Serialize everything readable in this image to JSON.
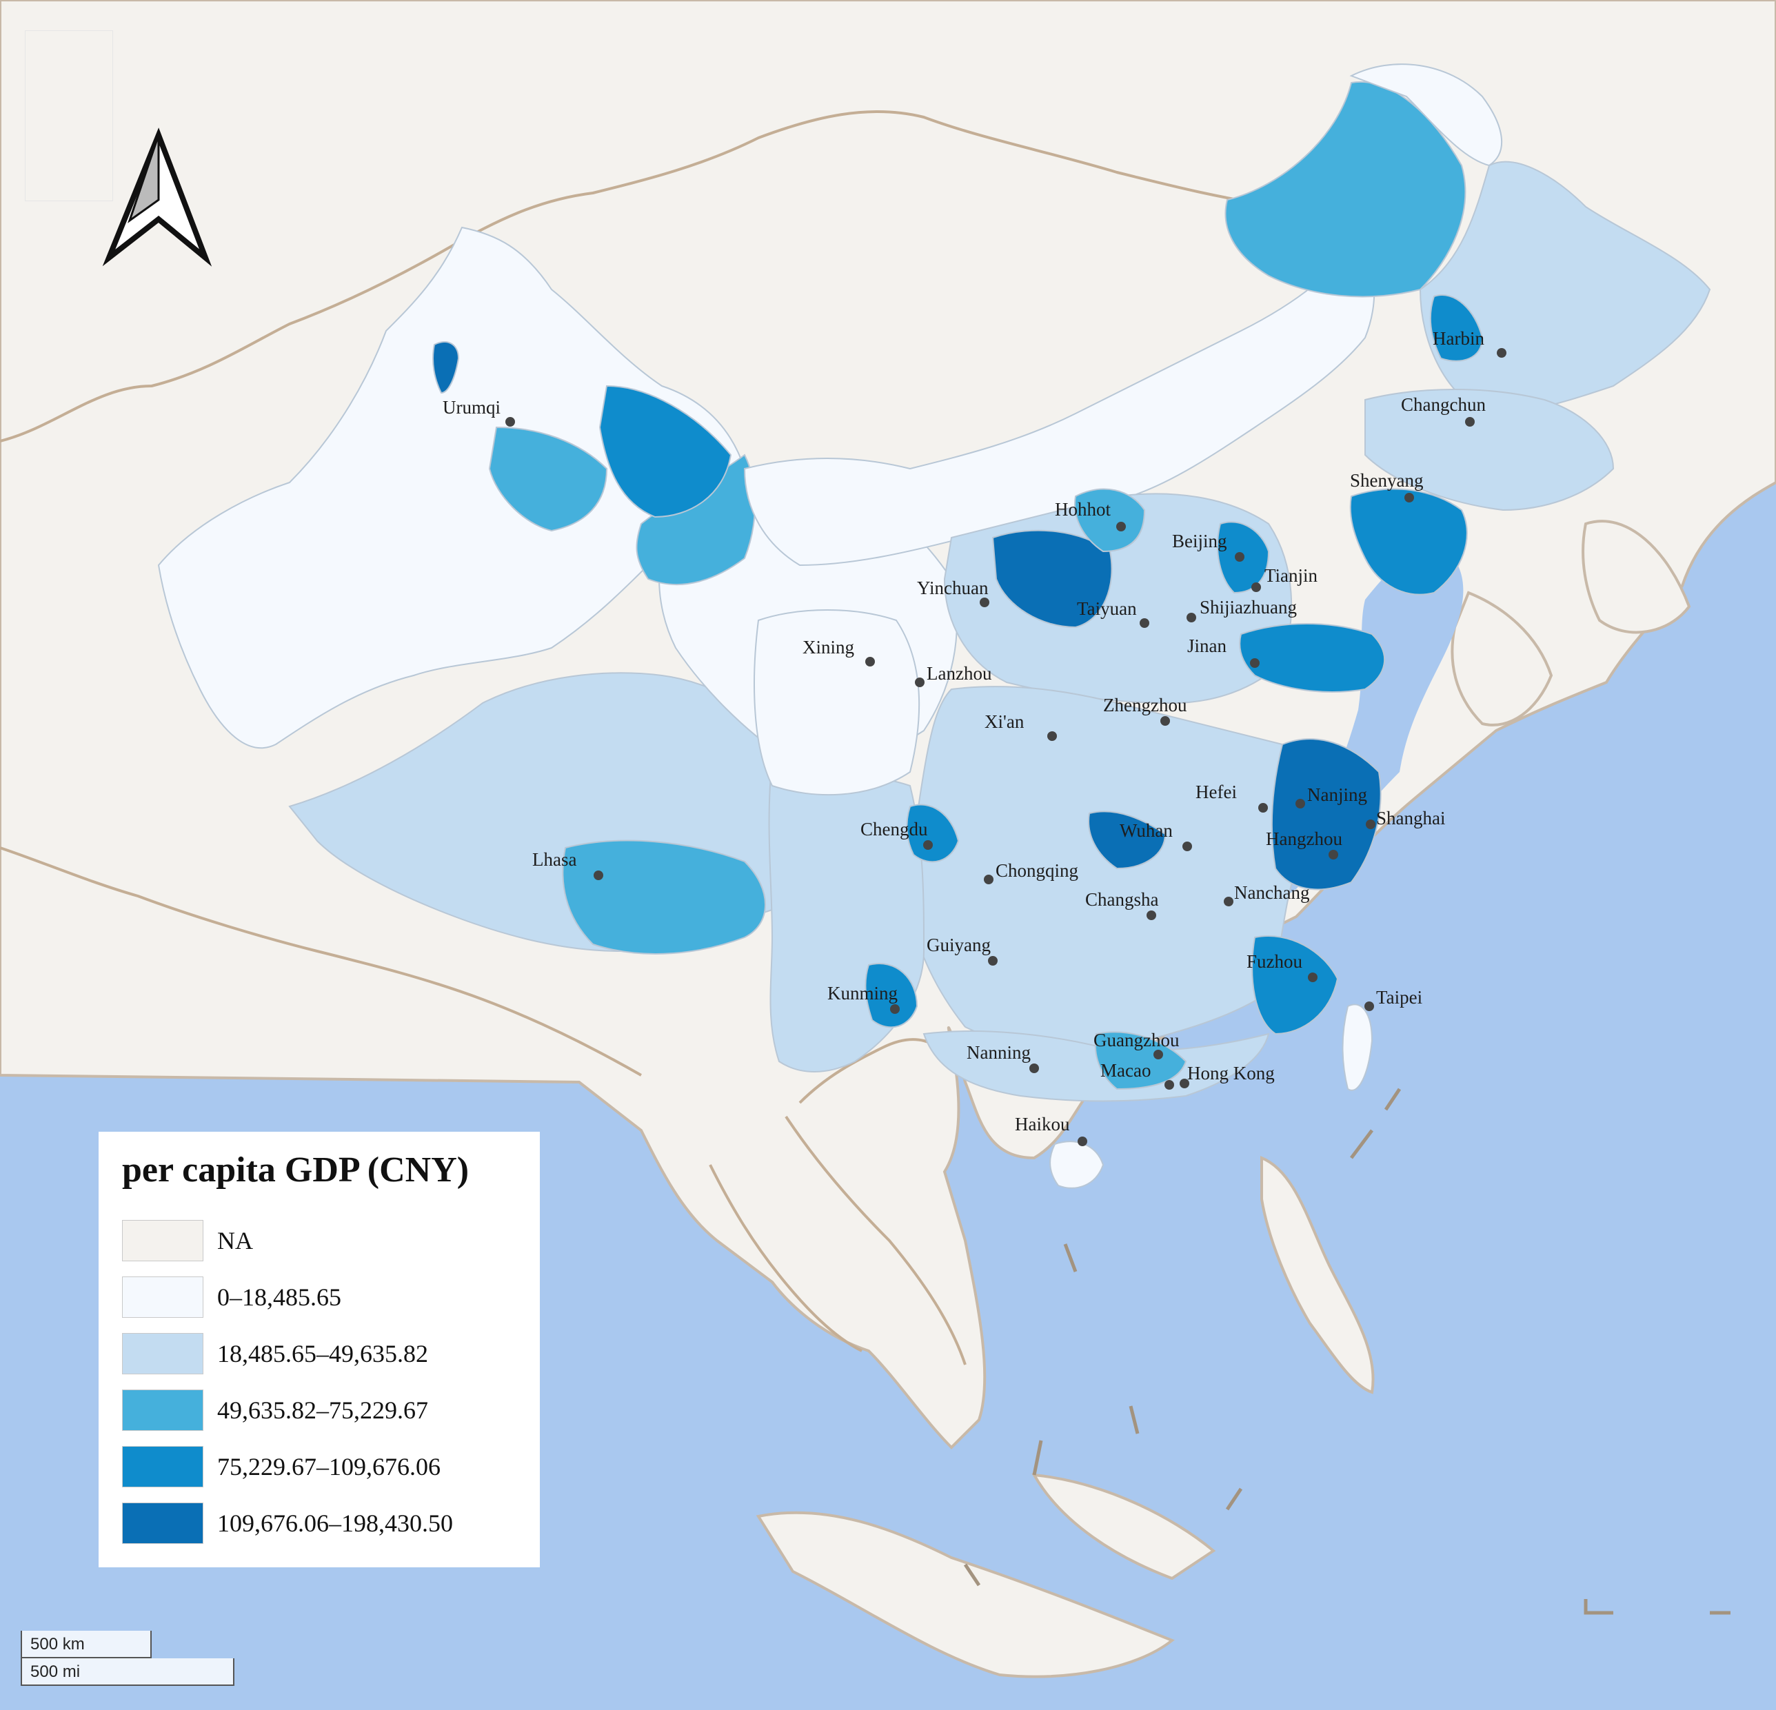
{
  "legend": {
    "title": "per capita GDP (CNY)",
    "classes": [
      {
        "label": "NA",
        "color": "#f4f2ee"
      },
      {
        "label": "0–18,485.65",
        "color": "#f5f9fe"
      },
      {
        "label": "18,485.65–49,635.82",
        "color": "#c3dcf1"
      },
      {
        "label": "49,635.82–75,229.67",
        "color": "#45b0dc"
      },
      {
        "label": "75,229.67–109,676.06",
        "color": "#0f8ccc"
      },
      {
        "label": "109,676.06–198,430.50",
        "color": "#0a6fb5"
      }
    ]
  },
  "scale": {
    "km": "500 km",
    "mi": "500 mi"
  },
  "north_arrow": {
    "icon": "north-arrow-icon"
  },
  "cities": [
    {
      "name": "Urumqi"
    },
    {
      "name": "Harbin"
    },
    {
      "name": "Changchun"
    },
    {
      "name": "Shenyang"
    },
    {
      "name": "Hohhot"
    },
    {
      "name": "Beijing"
    },
    {
      "name": "Tianjin"
    },
    {
      "name": "Yinchuan"
    },
    {
      "name": "Taiyuan"
    },
    {
      "name": "Shijiazhuang"
    },
    {
      "name": "Xining"
    },
    {
      "name": "Lanzhou"
    },
    {
      "name": "Jinan"
    },
    {
      "name": "Xi'an"
    },
    {
      "name": "Zhengzhou"
    },
    {
      "name": "Hefei"
    },
    {
      "name": "Nanjing"
    },
    {
      "name": "Shanghai"
    },
    {
      "name": "Chengdu"
    },
    {
      "name": "Wuhan"
    },
    {
      "name": "Hangzhou"
    },
    {
      "name": "Lhasa"
    },
    {
      "name": "Chongqing"
    },
    {
      "name": "Changsha"
    },
    {
      "name": "Nanchang"
    },
    {
      "name": "Guiyang"
    },
    {
      "name": "Fuzhou"
    },
    {
      "name": "Kunming"
    },
    {
      "name": "Taipei"
    },
    {
      "name": "Nanning"
    },
    {
      "name": "Guangzhou"
    },
    {
      "name": "Macao"
    },
    {
      "name": "Hong Kong"
    },
    {
      "name": "Haikou"
    }
  ]
}
